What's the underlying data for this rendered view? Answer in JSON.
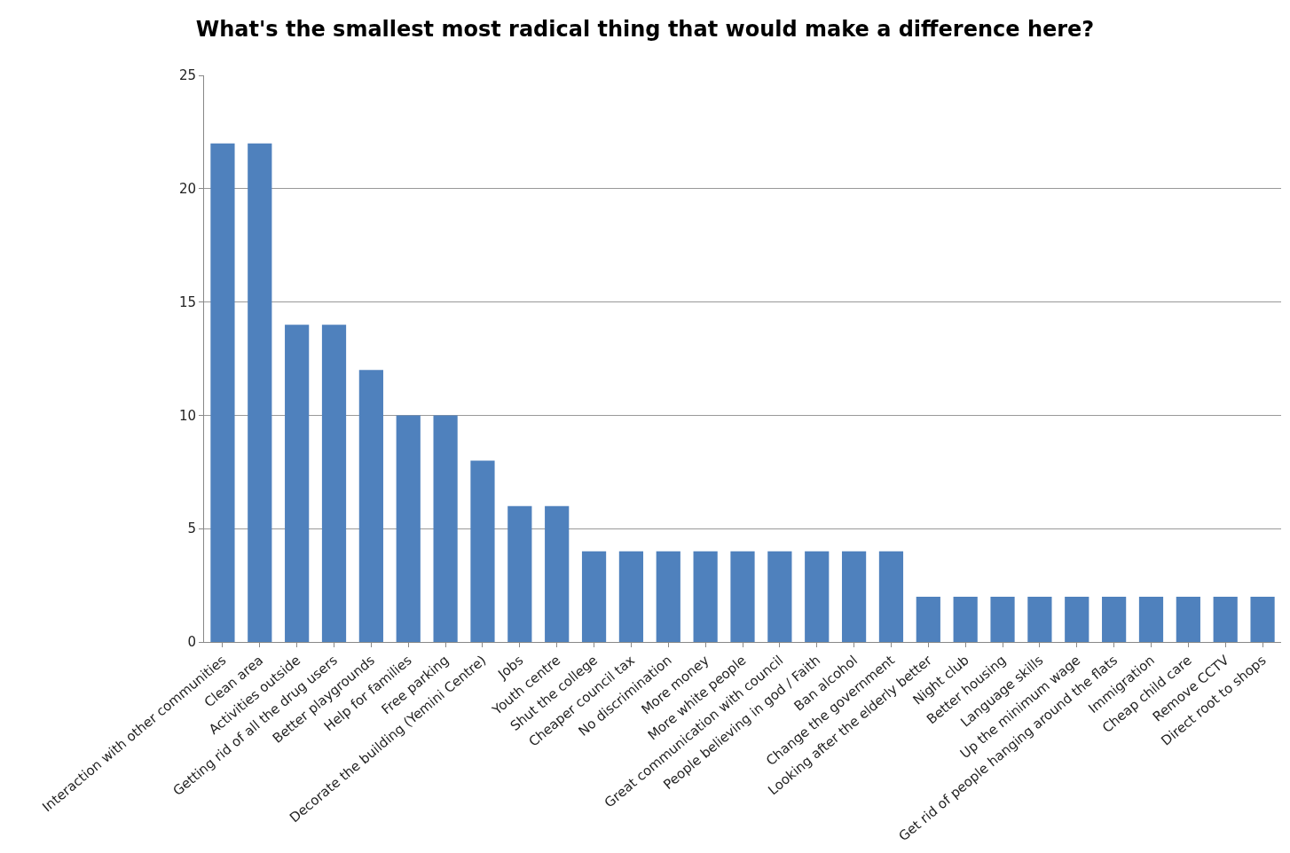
{
  "chart_data": {
    "type": "bar",
    "title": "What's the smallest most radical thing that would make a difference here?",
    "categories": [
      "Interaction with other communities",
      "Clean area",
      "Activities outside",
      "Getting rid of all the drug users",
      "Better playgrounds",
      "Help for families",
      "Free parking",
      "Decorate the building (Yemini Centre)",
      "Jobs",
      "Youth centre",
      "Shut the college",
      "Cheaper council tax",
      "No discrimination",
      "More money",
      "More white people",
      "Great communication with council",
      "People believing in god / Faith",
      "Ban alcohol",
      "Change the government",
      "Looking after the elderly better",
      "Night club",
      "Better housing",
      "Language skills",
      "Up the minimum wage",
      "Get rid of people hanging around the flats",
      "Immigration",
      "Cheap child care",
      "Remove CCTV",
      "Direct root to shops"
    ],
    "values": [
      22,
      22,
      14,
      14,
      12,
      10,
      10,
      8,
      6,
      6,
      4,
      4,
      4,
      4,
      4,
      4,
      4,
      4,
      4,
      2,
      2,
      2,
      2,
      2,
      2,
      2,
      2,
      2,
      2
    ],
    "color": "#4f81bd",
    "ylim": [
      0,
      25
    ],
    "yticks": [
      0,
      5,
      10,
      15,
      20,
      25
    ],
    "grid": "y"
  }
}
